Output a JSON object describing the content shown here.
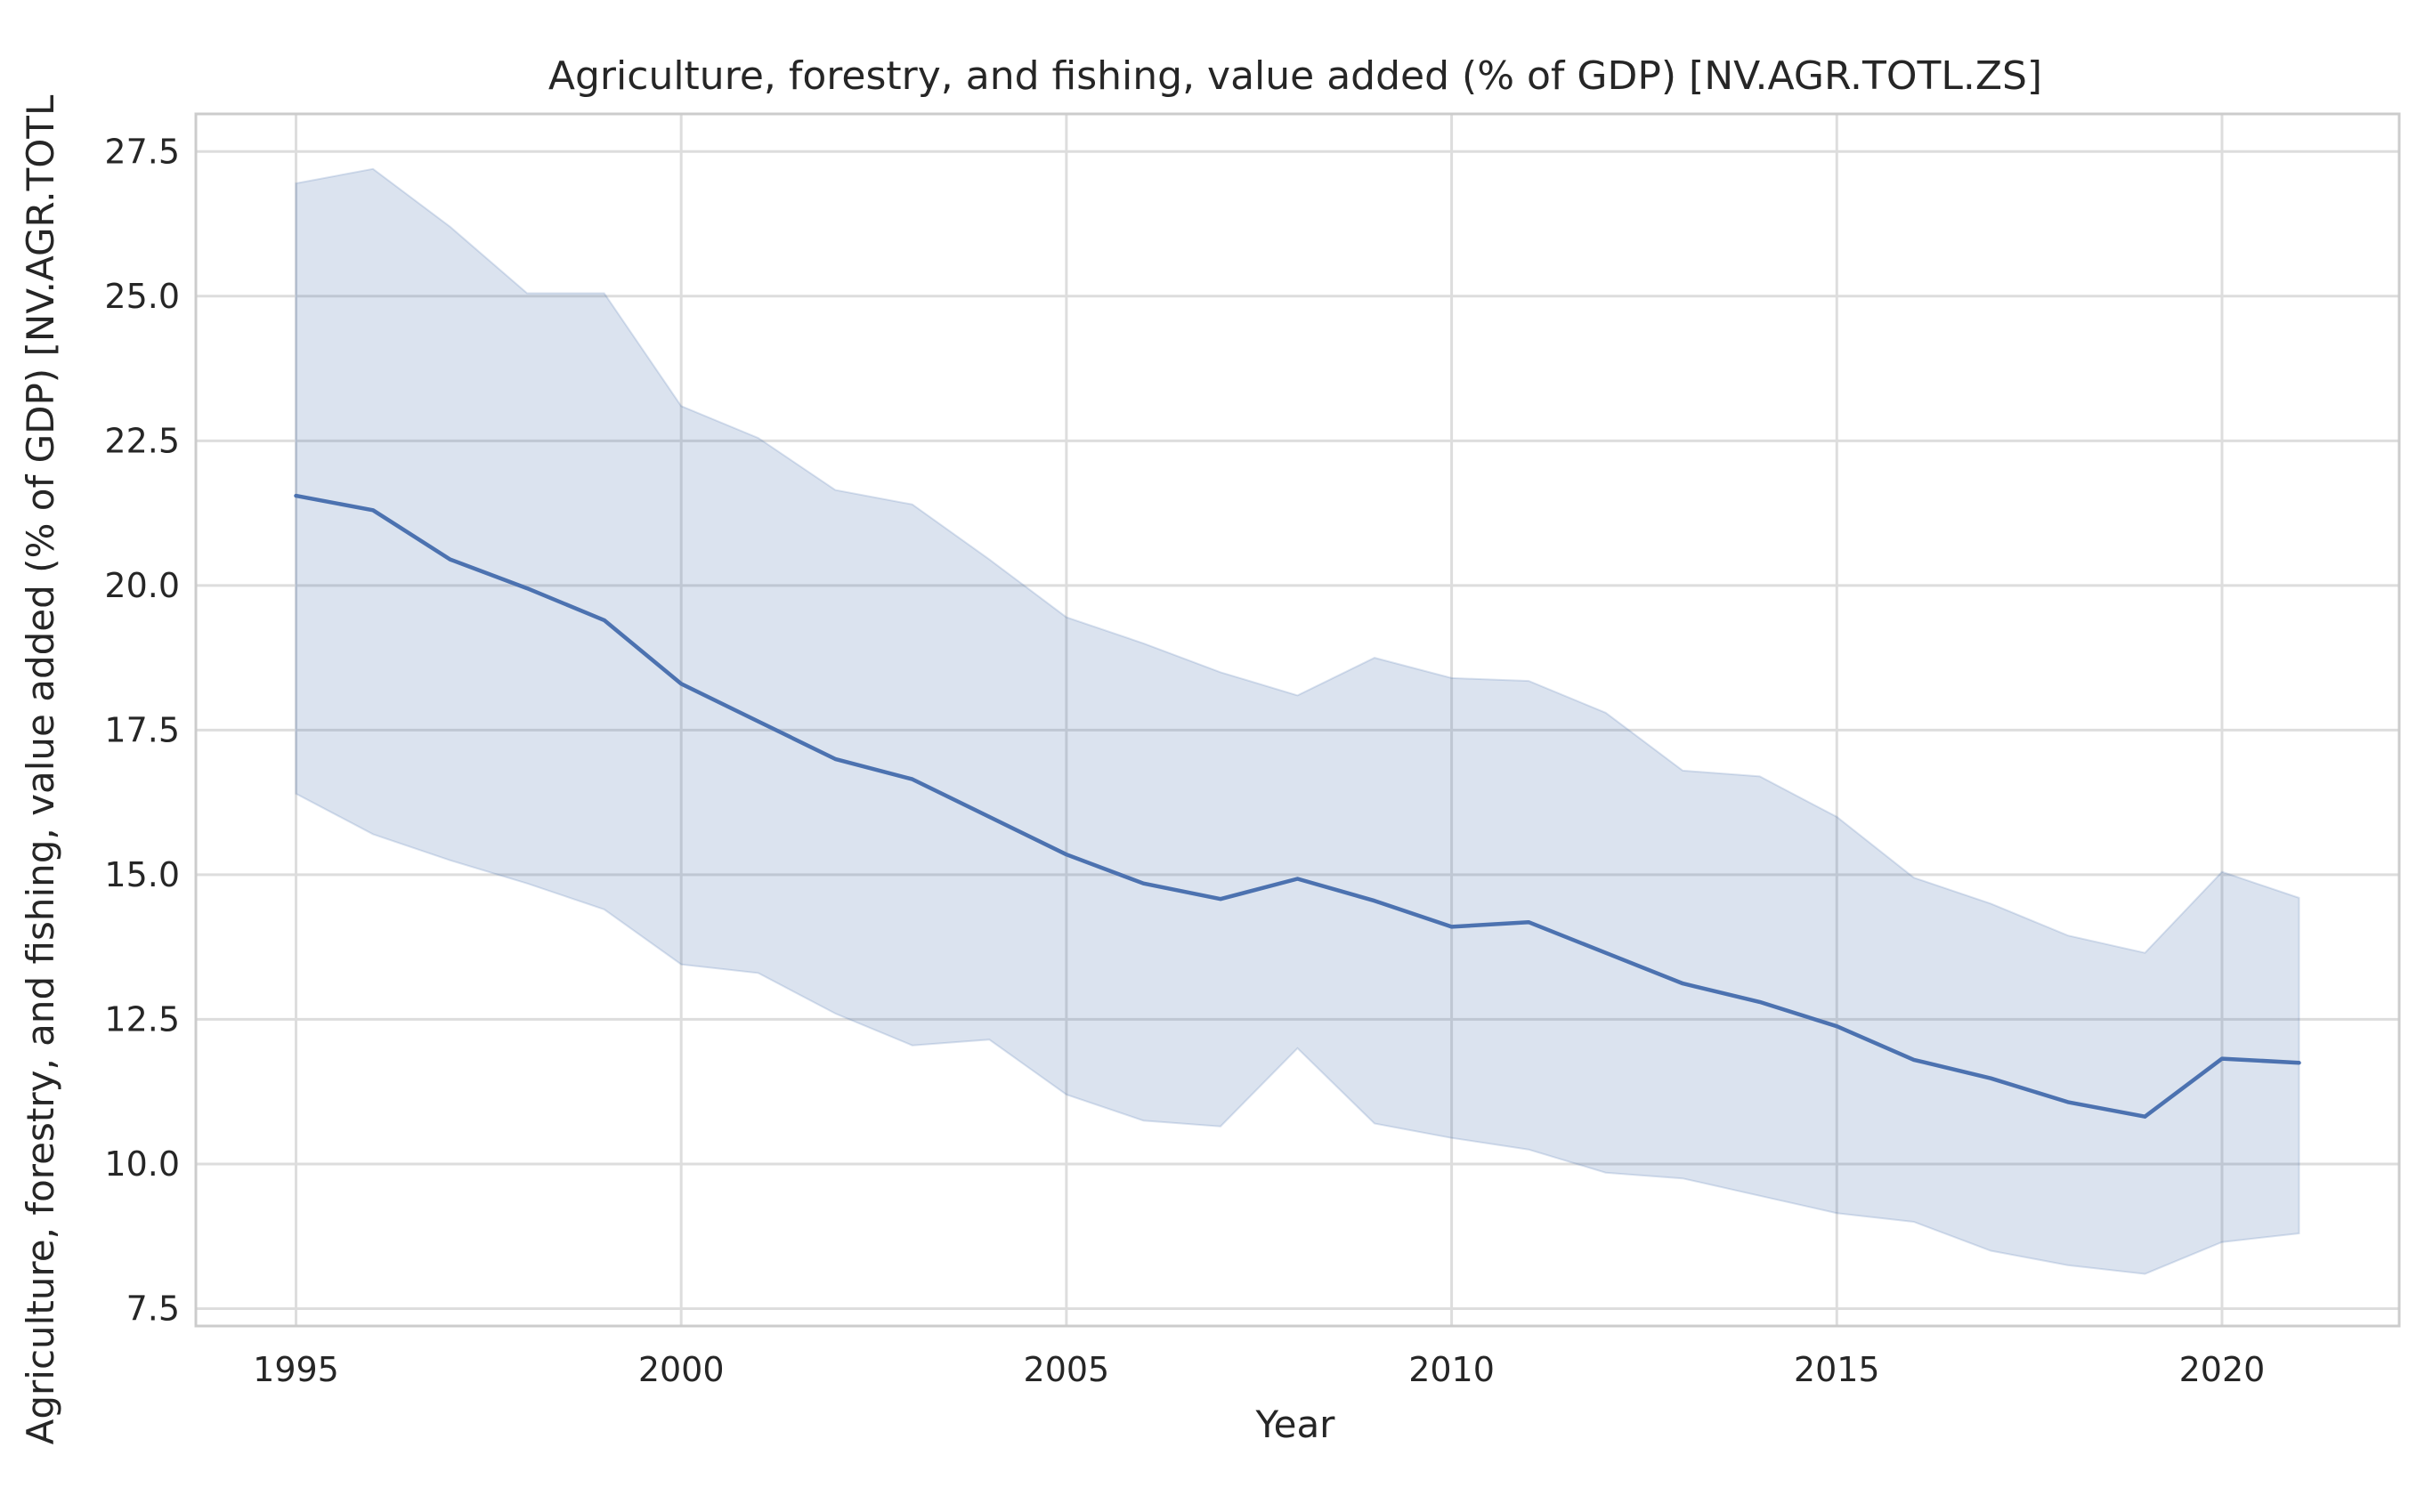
{
  "chart_data": {
    "type": "line",
    "title": "Agriculture, forestry, and fishing, value added (% of GDP) [NV.AGR.TOTL.ZS]",
    "xlabel": "Year",
    "ylabel": "Agriculture, forestry, and fishing, value added (% of GDP) [NV.AGR.TOTL",
    "x": [
      1995,
      1996,
      1997,
      1998,
      1999,
      2000,
      2001,
      2002,
      2003,
      2004,
      2005,
      2006,
      2007,
      2008,
      2009,
      2010,
      2011,
      2012,
      2013,
      2014,
      2015,
      2016,
      2017,
      2018,
      2019,
      2020,
      2021
    ],
    "series": [
      {
        "values": [
          21.55,
          21.3,
          20.45,
          19.95,
          19.4,
          18.3,
          17.65,
          17.0,
          16.65,
          16.0,
          15.35,
          14.85,
          14.58,
          14.93,
          14.55,
          14.1,
          14.18,
          13.65,
          13.12,
          12.8,
          12.38,
          11.8,
          11.48,
          11.07,
          10.82,
          11.82,
          11.75
        ],
        "band_upper": [
          26.95,
          27.2,
          26.2,
          25.05,
          25.05,
          23.1,
          22.55,
          21.65,
          21.4,
          20.45,
          19.45,
          19.0,
          18.5,
          18.1,
          18.75,
          18.4,
          18.35,
          17.8,
          16.8,
          16.7,
          16.0,
          14.95,
          14.5,
          13.95,
          13.65,
          15.05,
          14.6
        ],
        "band_lower": [
          16.4,
          15.7,
          15.25,
          14.85,
          14.4,
          13.45,
          13.3,
          12.6,
          12.05,
          12.15,
          11.2,
          10.75,
          10.65,
          12.0,
          10.7,
          10.45,
          10.25,
          9.85,
          9.75,
          9.45,
          9.15,
          9.0,
          8.5,
          8.25,
          8.1,
          8.65,
          8.8
        ]
      }
    ],
    "x_ticks": [
      "1995",
      "2000",
      "2005",
      "2010",
      "2015",
      "2020"
    ],
    "y_ticks": [
      "7.5",
      "10.0",
      "12.5",
      "15.0",
      "17.5",
      "20.0",
      "22.5",
      "25.0",
      "27.5"
    ],
    "xlim": [
      1993.7,
      2022.3
    ],
    "ylim": [
      7.2,
      28.15
    ],
    "grid": true,
    "colors": {
      "line": "#4c72b0",
      "band": "#4c72b0",
      "grid": "#dddddd",
      "frame": "#cccccc"
    }
  }
}
